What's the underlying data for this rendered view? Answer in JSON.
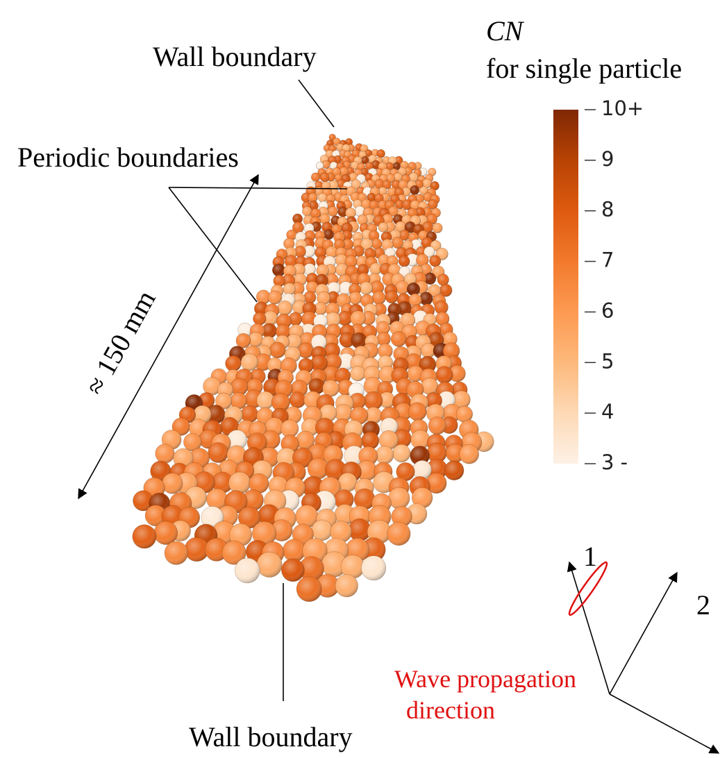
{
  "annotations": {
    "wall_top": "Wall boundary",
    "periodic": "Periodic boundaries",
    "length": "≈ 150 mm",
    "wall_bottom": "Wall boundary",
    "wave": [
      "Wave propagation",
      "direction"
    ]
  },
  "colorbar": {
    "title": "CN",
    "subtitle": "for single particle",
    "lim": [
      3,
      10
    ],
    "ticks": [
      {
        "value": 10,
        "label": "10+"
      },
      9,
      8,
      7,
      6,
      5,
      4,
      {
        "value": 3,
        "label": "3 -"
      }
    ],
    "colors": [
      "#fdf1e6",
      "#fdd9b5",
      "#fdb97c",
      "#fd9a52",
      "#f27a2d",
      "#de5a10",
      "#b84304",
      "#7f2704"
    ]
  },
  "axes": {
    "labels": [
      "1",
      "2"
    ]
  }
}
